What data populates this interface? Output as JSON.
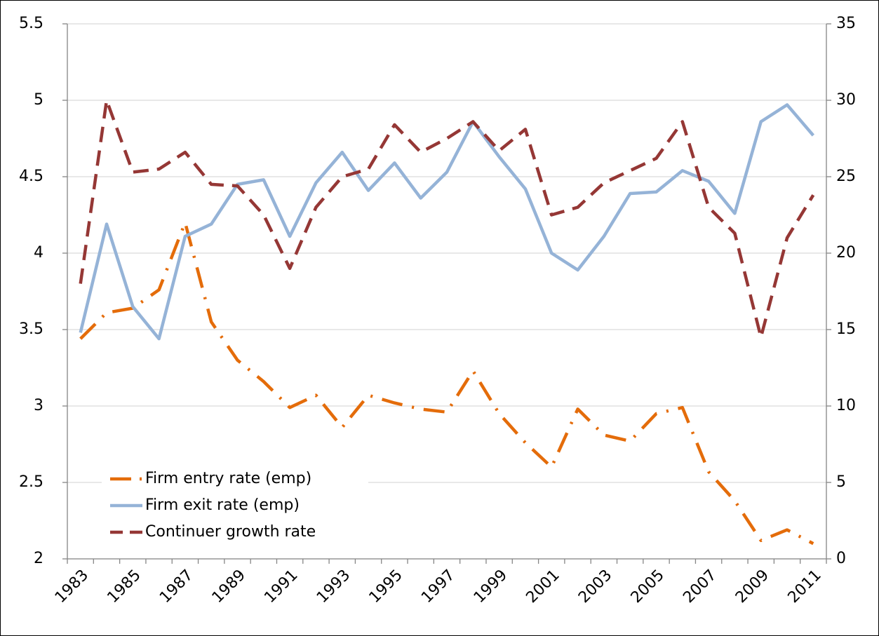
{
  "chart_data": {
    "type": "line",
    "categories": [
      "1983",
      null,
      "1985",
      null,
      "1987",
      null,
      "1989",
      null,
      "1991",
      null,
      "1993",
      null,
      "1995",
      null,
      "1997",
      null,
      "1999",
      null,
      "2001",
      null,
      "2003",
      null,
      "2005",
      null,
      "2007",
      null,
      "2009",
      null,
      "2011"
    ],
    "series": [
      {
        "name": "Firm entry rate (emp)",
        "color": "#e46c0a",
        "dash": "dashdot",
        "axis": "y",
        "values": [
          3.44,
          3.61,
          3.64,
          3.76,
          4.2,
          3.55,
          3.3,
          3.16,
          2.99,
          3.07,
          2.86,
          3.07,
          3.02,
          2.98,
          2.96,
          3.23,
          2.95,
          2.76,
          2.6,
          2.98,
          2.81,
          2.77,
          2.95,
          2.99,
          2.57,
          2.38,
          2.12,
          2.19,
          2.1
        ]
      },
      {
        "name": "Firm exit rate (emp)",
        "color": "#95b3d7",
        "dash": "solid",
        "axis": "y",
        "values": [
          3.48,
          4.19,
          3.65,
          3.44,
          4.11,
          4.19,
          4.45,
          4.48,
          4.11,
          4.46,
          4.66,
          4.41,
          4.59,
          4.36,
          4.53,
          4.86,
          4.63,
          4.42,
          4.0,
          3.89,
          4.11,
          4.39,
          4.4,
          4.54,
          4.47,
          4.26,
          4.86,
          4.97,
          4.77
        ]
      },
      {
        "name": "Continuer growth rate",
        "color": "#953735",
        "dash": "dash",
        "axis": "y2",
        "values": [
          18,
          30,
          25.3,
          25.5,
          26.6,
          24.5,
          24.4,
          22.5,
          19,
          23,
          25,
          25.5,
          28.4,
          26.6,
          27.5,
          28.6,
          26.7,
          28.1,
          22.5,
          23,
          24.6,
          25.4,
          26.2,
          28.6,
          23,
          21.3,
          14.5,
          21,
          23.8
        ]
      }
    ],
    "ylim": [
      2,
      5.5
    ],
    "yticks": [
      2,
      2.5,
      3,
      3.5,
      4,
      4.5,
      5,
      5.5
    ],
    "y2lim": [
      0,
      35
    ],
    "y2ticks": [
      0,
      5,
      10,
      15,
      20,
      25,
      30,
      35
    ],
    "grid": true,
    "legend": "lower-left"
  }
}
